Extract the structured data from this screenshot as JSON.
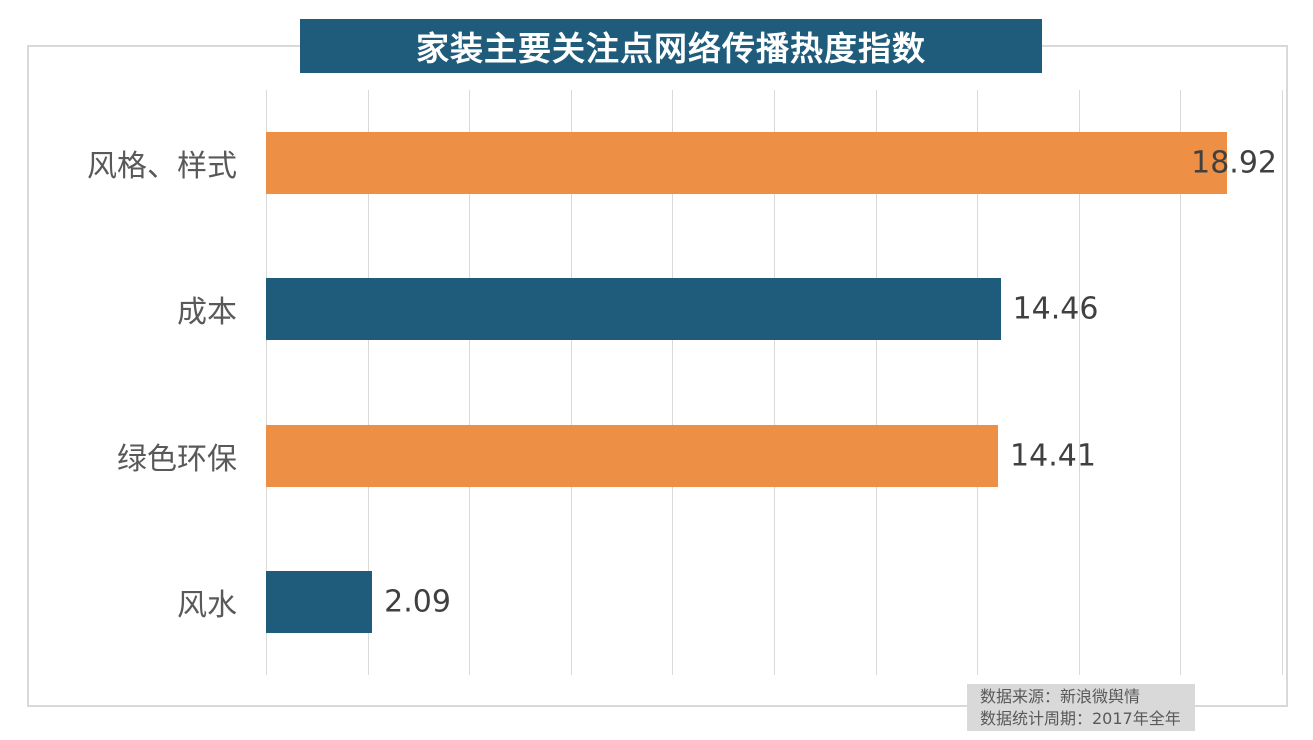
{
  "colors": {
    "teal": "#1f5c7c",
    "orange": "#ee8f46",
    "grid": "#d9d9d9",
    "frame_border": "#d9d9d9",
    "title_bg": "#1f5c7c",
    "title_text": "#ffffff",
    "value_text": "#404040",
    "category_text": "#595959",
    "source_bg": "#d9d9d9",
    "source_text": "#595959"
  },
  "chart_data": {
    "type": "bar",
    "orientation": "horizontal",
    "title": "家装主要关注点网络传播热度指数",
    "categories": [
      "风格、样式",
      "成本",
      "绿色环保",
      "风水"
    ],
    "values": [
      18.92,
      14.46,
      14.41,
      2.09
    ],
    "value_labels": [
      "18.92",
      "14.46",
      "14.41",
      "2.09"
    ],
    "bar_colors": [
      "#ee8f46",
      "#1f5c7c",
      "#ee8f46",
      "#1f5c7c"
    ],
    "xlim": [
      0,
      20
    ],
    "gridline_interval": 2,
    "grid": true,
    "legend": false,
    "source_note": [
      "数据来源：新浪微舆情",
      "数据统计周期：2017年全年"
    ]
  }
}
